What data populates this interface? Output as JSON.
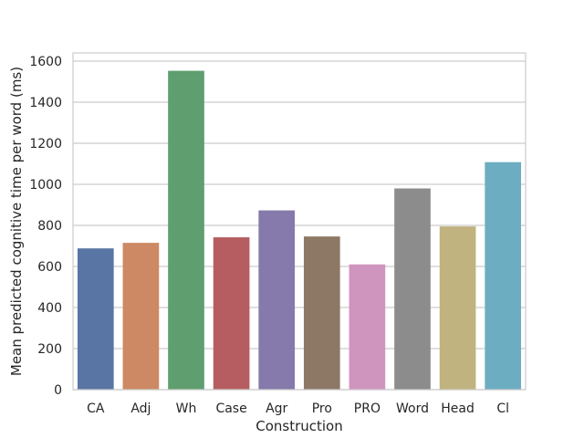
{
  "chart_data": {
    "type": "bar",
    "title": "",
    "xlabel": "Construction",
    "ylabel": "Mean predicted cognitive time per word (ms)",
    "categories": [
      "CA",
      "Adj",
      "Wh",
      "Case",
      "Agr",
      "Pro",
      "PRO",
      "Word",
      "Head",
      "Cl"
    ],
    "values": [
      688,
      715,
      1553,
      742,
      873,
      746,
      610,
      980,
      795,
      1108
    ],
    "colors": [
      "#5975a4",
      "#cc8963",
      "#5f9e6e",
      "#b55d60",
      "#857aab",
      "#8d7866",
      "#d095bf",
      "#8c8c8c",
      "#c1b37f",
      "#6cadc2"
    ],
    "ylim": [
      0,
      1640
    ],
    "yticks": [
      0,
      200,
      400,
      600,
      800,
      1000,
      1200,
      1400,
      1600
    ],
    "grid": true,
    "legend": "none",
    "background": "#ffffff",
    "grid_color": "#cccccc"
  }
}
